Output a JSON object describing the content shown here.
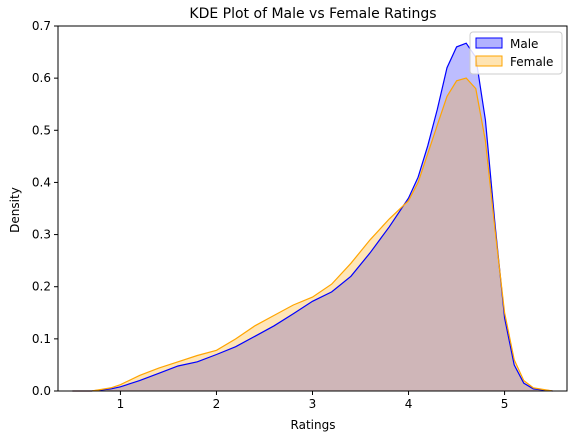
{
  "chart_data": {
    "type": "area",
    "title": "KDE Plot of Male vs Female Ratings",
    "xlabel": "Ratings",
    "ylabel": "Density",
    "xlim": [
      0.35,
      5.65
    ],
    "ylim": [
      0,
      0.7
    ],
    "xticks": [
      "1",
      "2",
      "3",
      "4",
      "5"
    ],
    "yticks": [
      "0.0",
      "0.1",
      "0.2",
      "0.3",
      "0.4",
      "0.5",
      "0.6",
      "0.7"
    ],
    "grid": false,
    "legend_position": "top-right",
    "series": [
      {
        "name": "Male",
        "color": "#0000ff",
        "x": [
          0.5,
          0.7,
          0.9,
          1.0,
          1.2,
          1.4,
          1.6,
          1.8,
          2.0,
          2.2,
          2.4,
          2.6,
          2.8,
          3.0,
          3.2,
          3.4,
          3.6,
          3.8,
          4.0,
          4.1,
          4.2,
          4.3,
          4.4,
          4.5,
          4.6,
          4.7,
          4.8,
          4.9,
          5.0,
          5.1,
          5.2,
          5.3,
          5.5
        ],
        "y": [
          0.0,
          0.0,
          0.004,
          0.008,
          0.02,
          0.034,
          0.048,
          0.056,
          0.07,
          0.085,
          0.105,
          0.125,
          0.148,
          0.172,
          0.19,
          0.22,
          0.265,
          0.315,
          0.37,
          0.41,
          0.47,
          0.54,
          0.62,
          0.66,
          0.667,
          0.64,
          0.52,
          0.32,
          0.14,
          0.05,
          0.015,
          0.004,
          0.0
        ]
      },
      {
        "name": "Female",
        "color": "#ffa500",
        "x": [
          0.5,
          0.7,
          0.9,
          1.0,
          1.2,
          1.4,
          1.6,
          1.8,
          2.0,
          2.2,
          2.4,
          2.6,
          2.8,
          3.0,
          3.2,
          3.4,
          3.6,
          3.8,
          4.0,
          4.1,
          4.2,
          4.3,
          4.4,
          4.5,
          4.6,
          4.7,
          4.8,
          4.9,
          5.0,
          5.1,
          5.2,
          5.3,
          5.5
        ],
        "y": [
          0.0,
          0.0,
          0.006,
          0.012,
          0.03,
          0.044,
          0.056,
          0.068,
          0.078,
          0.1,
          0.125,
          0.145,
          0.165,
          0.18,
          0.205,
          0.245,
          0.29,
          0.33,
          0.365,
          0.4,
          0.455,
          0.51,
          0.565,
          0.595,
          0.6,
          0.58,
          0.48,
          0.31,
          0.15,
          0.06,
          0.02,
          0.006,
          0.0
        ]
      }
    ]
  }
}
